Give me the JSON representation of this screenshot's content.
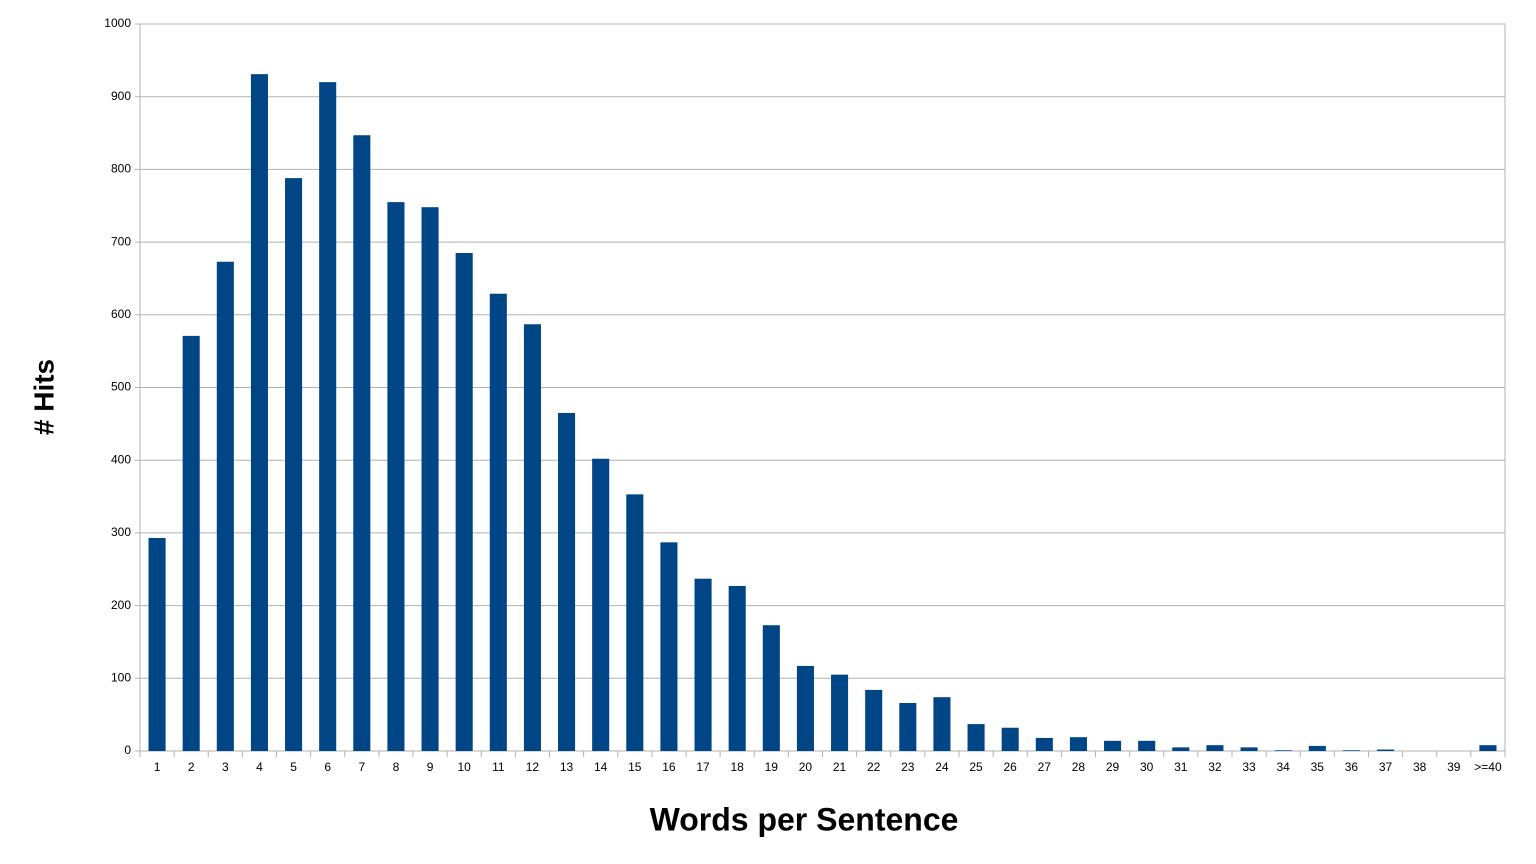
{
  "chart_data": {
    "type": "bar",
    "x_label": "Words per Sentence",
    "y_label": "# Hits",
    "categories": [
      "1",
      "2",
      "3",
      "4",
      "5",
      "6",
      "7",
      "8",
      "9",
      "10",
      "11",
      "12",
      "13",
      "14",
      "15",
      "16",
      "17",
      "18",
      "19",
      "20",
      "21",
      "22",
      "23",
      "24",
      "25",
      "26",
      "27",
      "28",
      "29",
      "30",
      "31",
      "32",
      "33",
      "34",
      "35",
      "36",
      "37",
      "38",
      "39",
      ">=40"
    ],
    "values": [
      293,
      571,
      673,
      931,
      788,
      920,
      847,
      755,
      748,
      685,
      629,
      587,
      465,
      402,
      353,
      287,
      237,
      227,
      173,
      117,
      105,
      84,
      66,
      74,
      37,
      32,
      18,
      19,
      14,
      14,
      5,
      8,
      5,
      1,
      7,
      1,
      2,
      0,
      0,
      8
    ],
    "color": "#004586",
    "ylim": [
      0,
      1000
    ],
    "yticks": [
      0,
      100,
      200,
      300,
      400,
      500,
      600,
      700,
      800,
      900,
      1000
    ],
    "grid": true
  }
}
